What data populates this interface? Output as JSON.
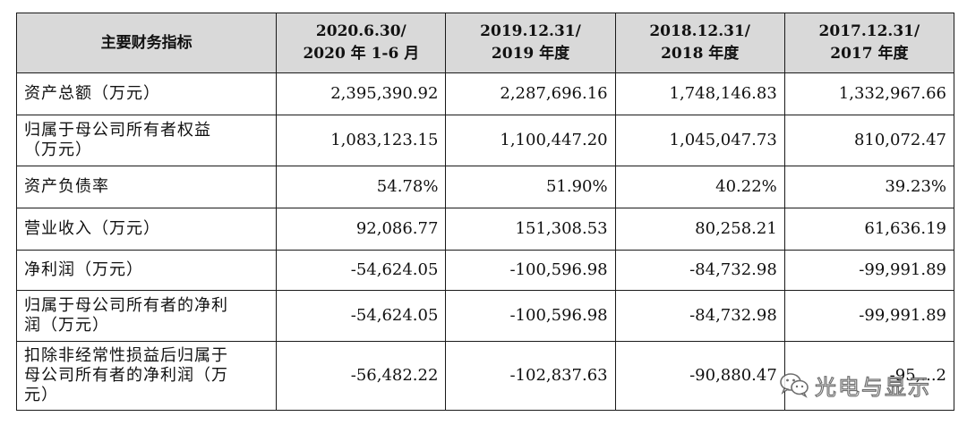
{
  "table": {
    "header": {
      "label": "主要财务指标",
      "periods": [
        {
          "line1": "2020.6.30/",
          "line2": "2020 年 1-6 月"
        },
        {
          "line1": "2019.12.31/",
          "line2": "2019 年度"
        },
        {
          "line1": "2018.12.31/",
          "line2": "2018 年度"
        },
        {
          "line1": "2017.12.31/",
          "line2": "2017 年度"
        }
      ]
    },
    "rows": [
      {
        "label_line1": "资产总额（万元）",
        "label_line2": "",
        "label_line3": "",
        "values": [
          "2,395,390.92",
          "2,287,696.16",
          "1,748,146.83",
          "1,332,967.66"
        ]
      },
      {
        "label_line1": "归属于母公司所有者权益",
        "label_line2": "（万元）",
        "label_line3": "",
        "values": [
          "1,083,123.15",
          "1,100,447.20",
          "1,045,047.73",
          "810,072.47"
        ]
      },
      {
        "label_line1": "资产负债率",
        "label_line2": "",
        "label_line3": "",
        "values": [
          "54.78%",
          "51.90%",
          "40.22%",
          "39.23%"
        ]
      },
      {
        "label_line1": "营业收入（万元）",
        "label_line2": "",
        "label_line3": "",
        "values": [
          "92,086.77",
          "151,308.53",
          "80,258.21",
          "61,636.19"
        ]
      },
      {
        "label_line1": "净利润（万元）",
        "label_line2": "",
        "label_line3": "",
        "values": [
          "-54,624.05",
          "-100,596.98",
          "-84,732.98",
          "-99,991.89"
        ]
      },
      {
        "label_line1": "归属于母公司所有者的净利",
        "label_line2": "润（万元）",
        "label_line3": "",
        "values": [
          "-54,624.05",
          "-100,596.98",
          "-84,732.98",
          "-99,991.89"
        ]
      },
      {
        "label_line1": "扣除非经常性损益后归属于",
        "label_line2": "母公司所有者的净利润（万",
        "label_line3": "元）",
        "values": [
          "-56,482.22",
          "-102,837.63",
          "-90,880.47",
          "-95,...2"
        ]
      }
    ]
  },
  "watermark": {
    "text": "光电与显示",
    "icon": "wechat-icon"
  }
}
